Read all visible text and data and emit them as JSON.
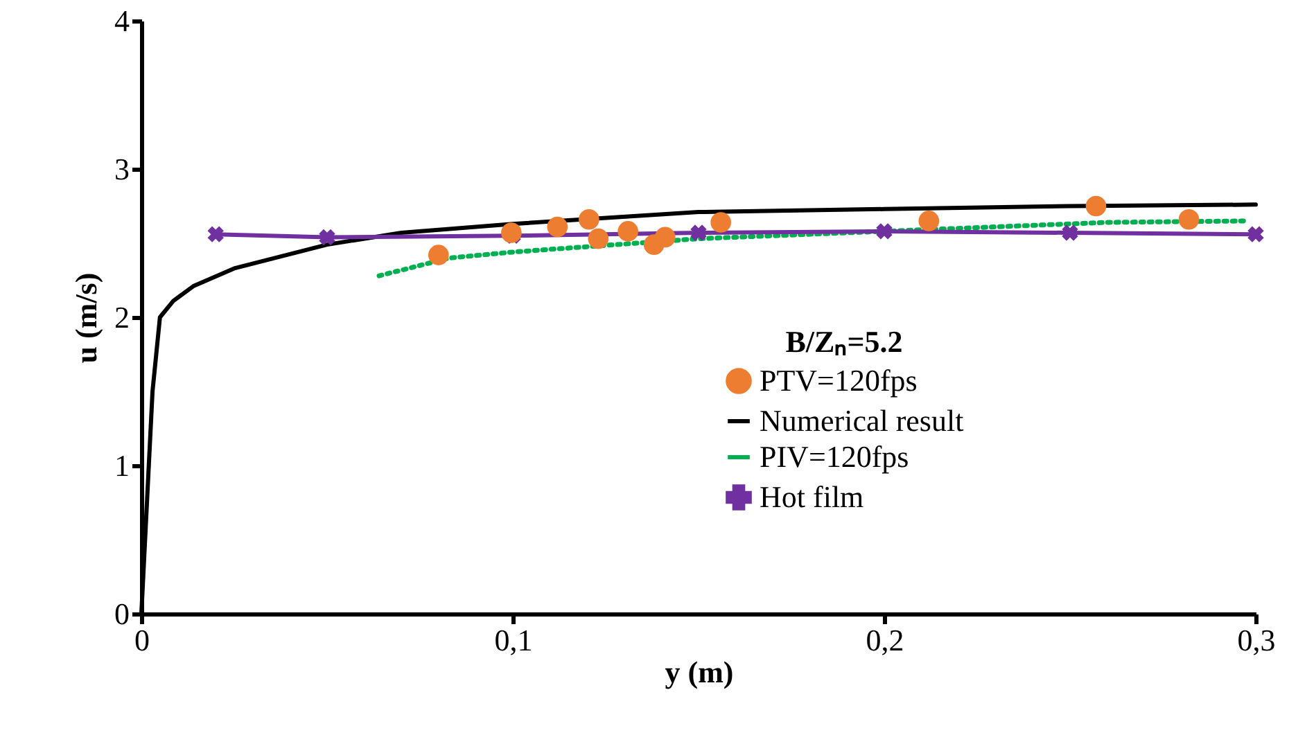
{
  "chart_data": {
    "type": "line",
    "xlabel": "y (m)",
    "ylabel": "u (m/s)",
    "legend_title": "B/Zₙ=5.2",
    "legend": "bottom right",
    "grid": false,
    "xlim": [
      0,
      0.3
    ],
    "xticks": [
      0,
      {
        "value": 0.1,
        "label": "0,1"
      },
      {
        "value": 0.2,
        "label": "0,2"
      },
      {
        "value": 0.3,
        "label": "0,3"
      }
    ],
    "ylim": [
      0,
      4
    ],
    "yticks": [
      0,
      1,
      2,
      3,
      4
    ],
    "series": [
      {
        "name": "PTV=120fps",
        "type": "scatter",
        "marker": "circle",
        "color": "#ed7d31",
        "x": [
          0.08,
          0.0996,
          0.112,
          0.1205,
          0.123,
          0.131,
          0.138,
          0.141,
          0.156,
          0.212,
          0.257,
          0.282
        ],
        "values": [
          2.42,
          2.57,
          2.61,
          2.66,
          2.53,
          2.58,
          2.49,
          2.54,
          2.64,
          2.65,
          2.75,
          2.66
        ]
      },
      {
        "name": "Numerical result",
        "line_style": "solid",
        "color": "#000000",
        "x": [
          0,
          0.003,
          0.005,
          0.0086,
          0.014,
          0.025,
          0.05,
          0.07,
          0.1,
          0.15,
          0.2,
          0.25,
          0.3
        ],
        "values": [
          0,
          1.5,
          2.0,
          2.11,
          2.21,
          2.33,
          2.49,
          2.57,
          2.63,
          2.71,
          2.73,
          2.75,
          2.76
        ]
      },
      {
        "name": "PIV=120fps",
        "line_style": "dotted",
        "color": "#00b050",
        "x": [
          0.064,
          0.083,
          0.1,
          0.15,
          0.2,
          0.26,
          0.298
        ],
        "values": [
          2.28,
          2.4,
          2.44,
          2.53,
          2.58,
          2.64,
          2.65
        ]
      },
      {
        "name": "Hot film",
        "line_style": "solid",
        "marker": "cross",
        "color": "#7030a0",
        "x": [
          0.02,
          0.05,
          0.1,
          0.15,
          0.2,
          0.25,
          0.3
        ],
        "values": [
          2.56,
          2.54,
          2.55,
          2.57,
          2.58,
          2.57,
          2.56
        ]
      }
    ]
  }
}
